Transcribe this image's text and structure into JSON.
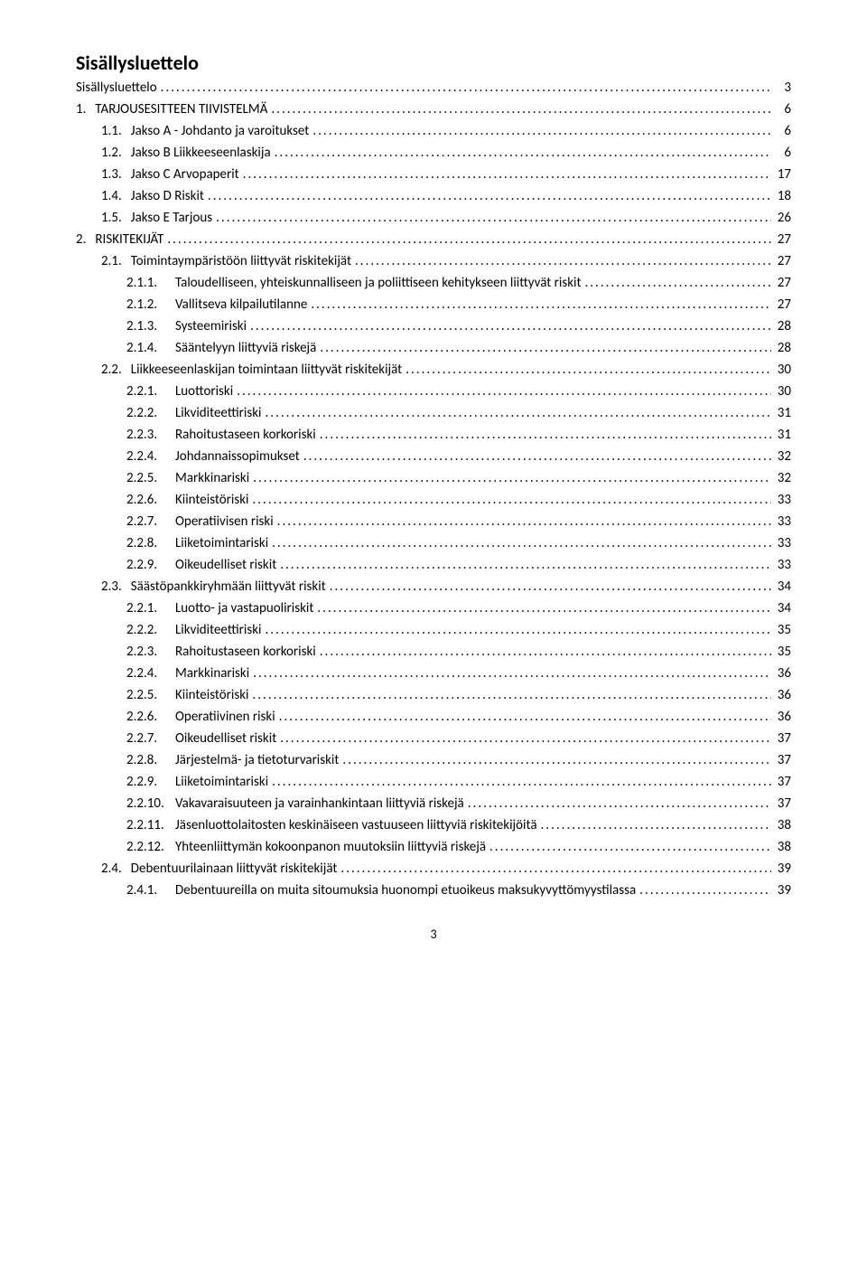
{
  "title": "Sisällysluettelo",
  "toc": [
    {
      "indent": 0,
      "num": "",
      "label": "Sisällysluettelo",
      "page": "3"
    },
    {
      "indent": 0,
      "num": "1.",
      "label": "TARJOUSESITTEEN TIIVISTELMÄ",
      "page": "6"
    },
    {
      "indent": 1,
      "num": "1.1.",
      "label": "Jakso A - Johdanto ja varoitukset",
      "page": "6"
    },
    {
      "indent": 1,
      "num": "1.2.",
      "label": "Jakso B Liikkeeseenlaskija",
      "page": "6"
    },
    {
      "indent": 1,
      "num": "1.3.",
      "label": "Jakso C Arvopaperit",
      "page": "17"
    },
    {
      "indent": 1,
      "num": "1.4.",
      "label": "Jakso D Riskit",
      "page": "18"
    },
    {
      "indent": 1,
      "num": "1.5.",
      "label": "Jakso E Tarjous",
      "page": "26"
    },
    {
      "indent": 0,
      "num": "2.",
      "label": "RISKITEKIJÄT",
      "page": "27"
    },
    {
      "indent": 1,
      "num": "2.1.",
      "label": "Toimintaympäristöön liittyvät riskitekijät",
      "page": "27"
    },
    {
      "indent": 2,
      "num": "2.1.1.",
      "label": "Taloudelliseen, yhteiskunnalliseen ja poliittiseen kehitykseen liittyvät riskit",
      "page": "27"
    },
    {
      "indent": 2,
      "num": "2.1.2.",
      "label": "Vallitseva kilpailutilanne",
      "page": "27"
    },
    {
      "indent": 2,
      "num": "2.1.3.",
      "label": "Systeemiriski",
      "page": "28"
    },
    {
      "indent": 2,
      "num": "2.1.4.",
      "label": "Sääntelyyn liittyviä riskejä",
      "page": "28"
    },
    {
      "indent": 1,
      "num": "2.2.",
      "label": "Liikkeeseenlaskijan toimintaan liittyvät riskitekijät",
      "page": "30"
    },
    {
      "indent": 2,
      "num": "2.2.1.",
      "label": "Luottoriski",
      "page": "30"
    },
    {
      "indent": 2,
      "num": "2.2.2.",
      "label": "Likviditeettiriski",
      "page": "31"
    },
    {
      "indent": 2,
      "num": "2.2.3.",
      "label": "Rahoitustaseen korkoriski",
      "page": "31"
    },
    {
      "indent": 2,
      "num": "2.2.4.",
      "label": "Johdannaissopimukset",
      "page": "32"
    },
    {
      "indent": 2,
      "num": "2.2.5.",
      "label": "Markkinariski",
      "page": "32"
    },
    {
      "indent": 2,
      "num": "2.2.6.",
      "label": "Kiinteistöriski",
      "page": "33"
    },
    {
      "indent": 2,
      "num": "2.2.7.",
      "label": "Operatiivisen riski",
      "page": "33"
    },
    {
      "indent": 2,
      "num": "2.2.8.",
      "label": "Liiketoimintariski",
      "page": "33"
    },
    {
      "indent": 2,
      "num": "2.2.9.",
      "label": "Oikeudelliset riskit",
      "page": "33"
    },
    {
      "indent": 1,
      "num": "2.3.",
      "label": "Säästöpankkiryhmään liittyvät riskit",
      "page": "34"
    },
    {
      "indent": 2,
      "num": "2.2.1.",
      "label": "Luotto- ja vastapuoliriskit",
      "page": "34"
    },
    {
      "indent": 2,
      "num": "2.2.2.",
      "label": "Likviditeettiriski",
      "page": "35"
    },
    {
      "indent": 2,
      "num": "2.2.3.",
      "label": "Rahoitustaseen korkoriski",
      "page": "35"
    },
    {
      "indent": 2,
      "num": "2.2.4.",
      "label": "Markkinariski",
      "page": "36"
    },
    {
      "indent": 2,
      "num": "2.2.5.",
      "label": "Kiinteistöriski",
      "page": "36"
    },
    {
      "indent": 2,
      "num": "2.2.6.",
      "label": "Operatiivinen riski",
      "page": "36"
    },
    {
      "indent": 2,
      "num": "2.2.7.",
      "label": "Oikeudelliset riskit",
      "page": "37"
    },
    {
      "indent": 2,
      "num": "2.2.8.",
      "label": "Järjestelmä- ja tietoturvariskit",
      "page": "37"
    },
    {
      "indent": 2,
      "num": "2.2.9.",
      "label": "Liiketoimintariski",
      "page": "37"
    },
    {
      "indent": 2,
      "num": "2.2.10.",
      "label": "Vakavaraisuuteen ja varainhankintaan liittyviä riskejä",
      "page": "37"
    },
    {
      "indent": 2,
      "num": "2.2.11.",
      "label": "Jäsenluottolaitosten keskinäiseen vastuuseen liittyviä riskitekijöitä",
      "page": "38"
    },
    {
      "indent": 2,
      "num": "2.2.12.",
      "label": "Yhteenliittymän kokoonpanon muutoksiin liittyviä riskejä",
      "page": "38"
    },
    {
      "indent": 1,
      "num": "2.4.",
      "label": "Debentuurilainaan liittyvät riskitekijät",
      "page": "39"
    },
    {
      "indent": 2,
      "num": "2.4.1.",
      "label": "Debentuureilla on muita sitoumuksia huonompi etuoikeus maksukyvyttömyystilassa",
      "page": "39"
    }
  ],
  "footer": "3"
}
